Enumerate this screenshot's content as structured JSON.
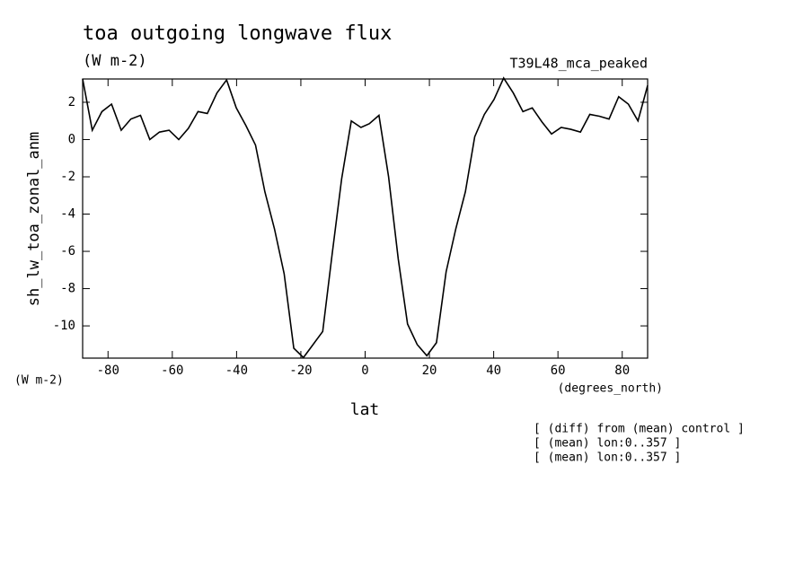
{
  "chart_data": {
    "type": "line",
    "title": "toa outgoing longwave flux",
    "subtitle": "(W m-2)",
    "run_label": "T39L48_mca_peaked",
    "y_label": "sh_lw_toa_zonal_anm",
    "y_units": "(W m-2)",
    "x_units": "(degrees_north)",
    "x_label": "lat",
    "notes": [
      "[ (diff) from (mean) control ]",
      "[ (mean) lon:0..357 ]",
      "[ (mean) lon:0..357 ]"
    ],
    "x": [
      -87.9,
      -84.9,
      -81.9,
      -78.9,
      -75.9,
      -72.9,
      -69.9,
      -67.0,
      -64.0,
      -61.0,
      -58.0,
      -55.0,
      -52.0,
      -49.1,
      -46.1,
      -43.1,
      -40.1,
      -37.1,
      -34.1,
      -31.2,
      -28.2,
      -25.2,
      -22.2,
      -19.2,
      -16.2,
      -13.2,
      -10.3,
      -7.3,
      -4.3,
      -1.3,
      1.3,
      4.3,
      7.3,
      10.3,
      13.2,
      16.2,
      19.2,
      22.2,
      25.2,
      28.2,
      31.2,
      34.1,
      37.1,
      40.1,
      43.1,
      46.1,
      49.1,
      52.0,
      55.0,
      58.0,
      61.0,
      64.0,
      67.0,
      69.9,
      72.9,
      75.9,
      78.9,
      81.9,
      84.9,
      87.9
    ],
    "series": [
      {
        "color": "#000000",
        "values": [
          3.25,
          0.5,
          1.5,
          1.9,
          0.5,
          1.1,
          1.3,
          0,
          0.4,
          0.5,
          0,
          0.6,
          1.5,
          1.4,
          2.5,
          3.2,
          1.7,
          0.75,
          -0.3,
          -2.8,
          -4.8,
          -7.2,
          -11.2,
          -11.7,
          -11.0,
          -10.3,
          -6.2,
          -2.1,
          1.0,
          0.65,
          0.85,
          1.3,
          -2.0,
          -6.4,
          -9.9,
          -11.0,
          -11.6,
          -10.9,
          -7.1,
          -4.8,
          -2.8,
          0.15,
          1.35,
          2.15,
          3.3,
          2.5,
          1.5,
          1.7,
          0.95,
          0.3,
          0.65,
          0.55,
          0.4,
          1.35,
          1.25,
          1.1,
          2.3,
          1.9,
          1.0,
          2.9
        ]
      }
    ],
    "xlim": [
      -87.9,
      87.9
    ],
    "xticks": [
      -80,
      -60,
      -40,
      -20,
      0,
      20,
      40,
      60,
      80
    ],
    "ylim": [
      -11.73,
      3.25
    ],
    "yticks": [
      -10,
      -8,
      -6,
      -4,
      -2,
      0,
      2
    ]
  }
}
